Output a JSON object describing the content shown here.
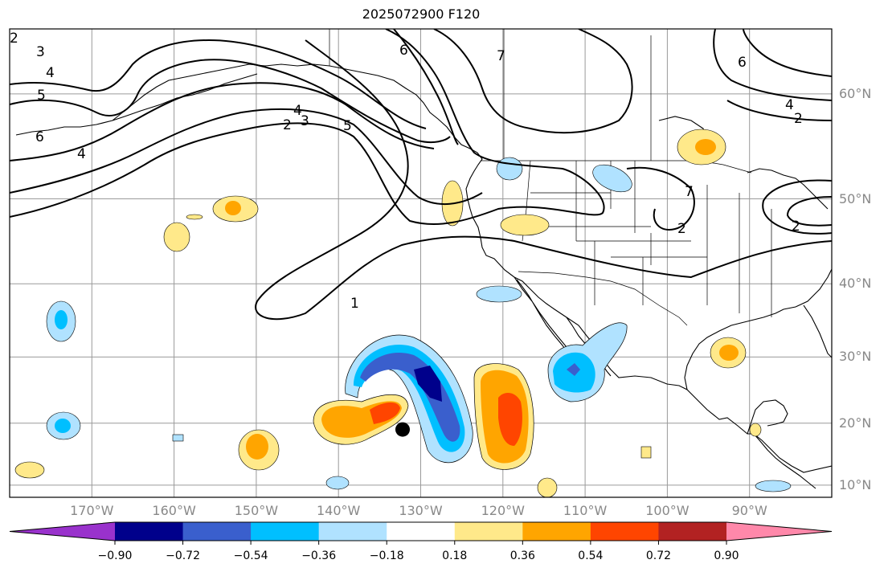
{
  "title": "2025072900 F120",
  "lat_labels": [
    {
      "text": "60°N",
      "lat": 60
    },
    {
      "text": "50°N",
      "lat": 50
    },
    {
      "text": "40°N",
      "lat": 40
    },
    {
      "text": "30°N",
      "lat": 30
    },
    {
      "text": "20°N",
      "lat": 20
    },
    {
      "text": "10°N",
      "lat": 10
    }
  ],
  "lon_labels": [
    {
      "text": "170°W",
      "lon": -170
    },
    {
      "text": "160°W",
      "lon": -160
    },
    {
      "text": "150°W",
      "lon": -150
    },
    {
      "text": "140°W",
      "lon": -140
    },
    {
      "text": "130°W",
      "lon": -130
    },
    {
      "text": "120°W",
      "lon": -120
    },
    {
      "text": "110°W",
      "lon": -110
    },
    {
      "text": "100°W",
      "lon": -100
    },
    {
      "text": "90°W",
      "lon": -90
    }
  ],
  "colorbar": {
    "labels": [
      "−0.90",
      "−0.72",
      "−0.54",
      "−0.36",
      "−0.18",
      "0.18",
      "0.36",
      "0.54",
      "0.72",
      "0.90"
    ],
    "colors": [
      "#9932cc",
      "#00008b",
      "#3a5fcd",
      "#00bfff",
      "#b0e2ff",
      "#ffffff",
      "#ffe98a",
      "#ffa500",
      "#ff4500",
      "#b22222",
      "#ff88aa"
    ]
  },
  "contour_labels": [
    "1",
    "2",
    "3",
    "4",
    "5",
    "6",
    "7"
  ],
  "storm_marker": {
    "lat": 19,
    "lon": -132.2
  },
  "map_extent": {
    "lon_min": -180,
    "lon_max": -80,
    "lat_min": 8,
    "lat_max": 65
  }
}
